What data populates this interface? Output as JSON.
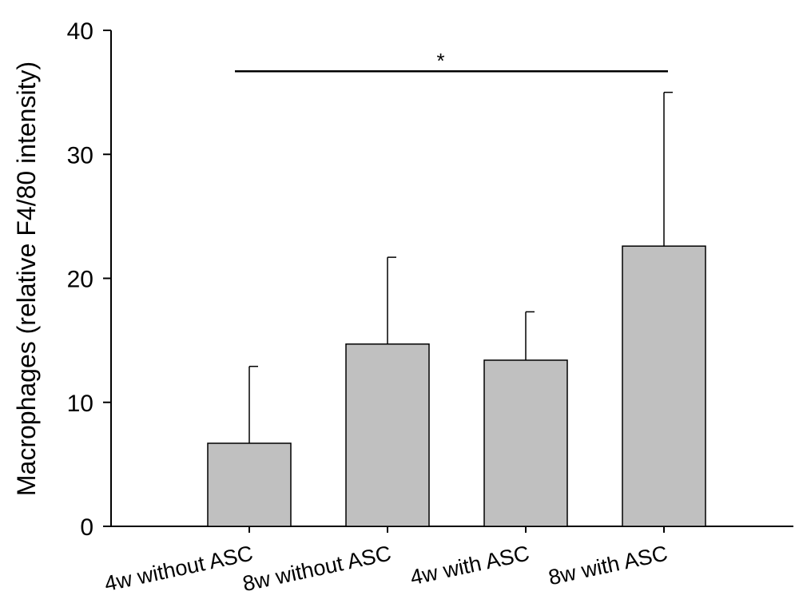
{
  "chart_data": {
    "type": "bar",
    "title": "",
    "xlabel": "",
    "ylabel": "Macrophages (relative F4/80 intensity)",
    "ylim": [
      0,
      40
    ],
    "yticks": [
      0,
      10,
      20,
      30,
      40
    ],
    "categories": [
      "4w without ASC",
      "8w without ASC",
      "4w with ASC",
      "8w with ASC"
    ],
    "values": [
      6.7,
      14.7,
      13.4,
      22.6
    ],
    "error_upper": [
      12.9,
      21.7,
      17.3,
      35.0
    ],
    "bar_color": "#c0c0c0",
    "grid": false,
    "significance": {
      "from_category": 0,
      "to_category": 3,
      "y": 36.7,
      "label": "*"
    }
  }
}
